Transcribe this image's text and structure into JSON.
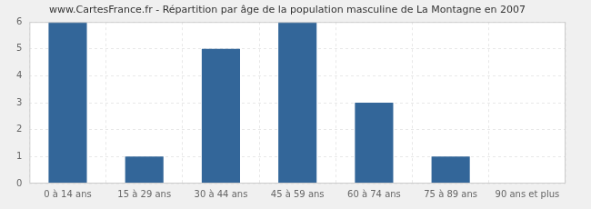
{
  "chart_data": {
    "type": "bar",
    "title": "www.CartesFrance.fr - Répartition par âge de la population masculine de La Montagne en 2007",
    "categories": [
      "0 à 14 ans",
      "15 à 29 ans",
      "30 à 44 ans",
      "45 à 59 ans",
      "60 à 74 ans",
      "75 à 89 ans",
      "90 ans et plus"
    ],
    "values": [
      6,
      1,
      5,
      6,
      3,
      1,
      0
    ],
    "color": "#336699",
    "ylim": [
      0,
      6
    ],
    "yticks": [
      0,
      1,
      2,
      3,
      4,
      5,
      6
    ],
    "grid": true
  }
}
